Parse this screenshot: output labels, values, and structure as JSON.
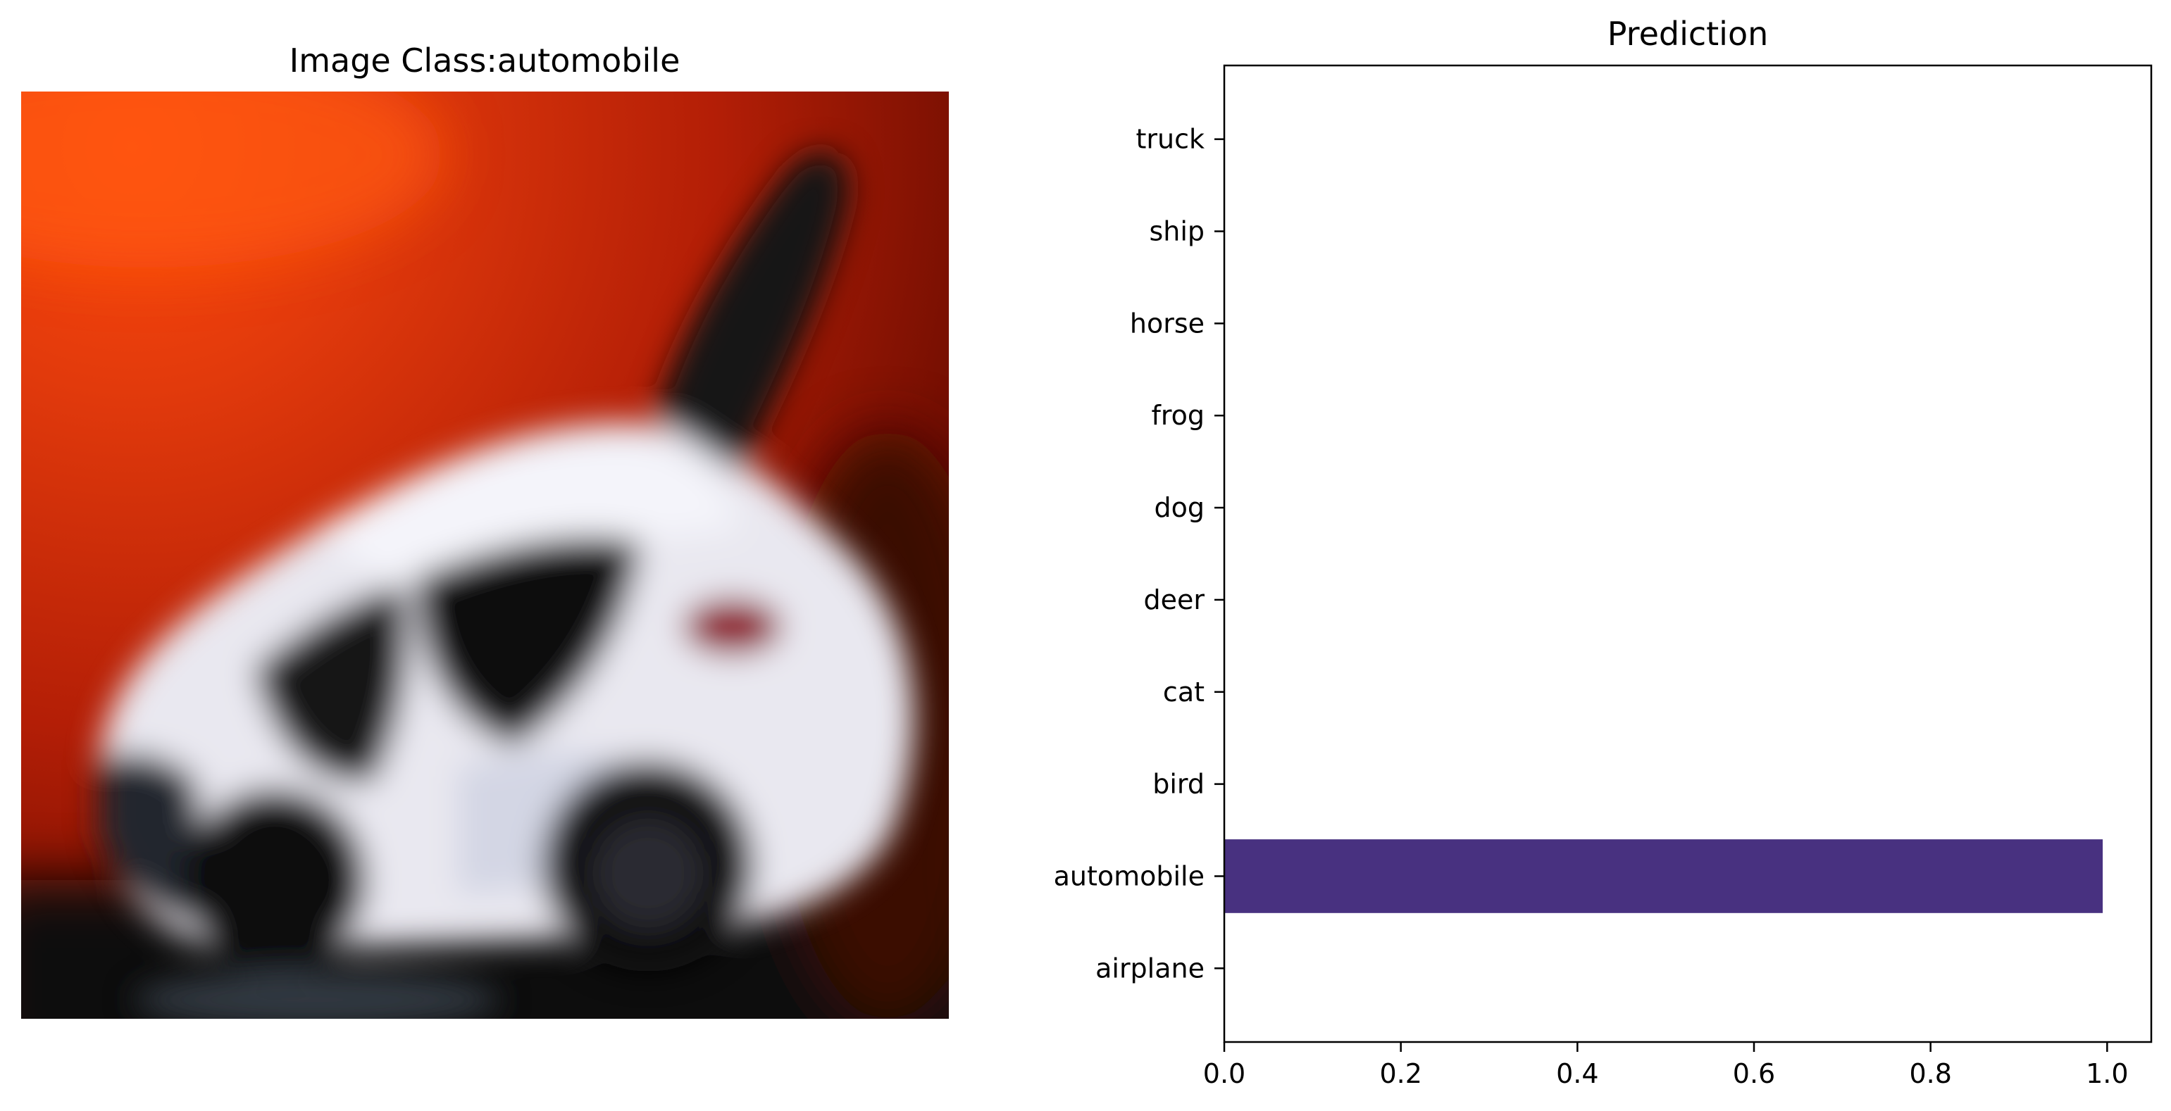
{
  "image_panel": {
    "title": "Image Class:automobile",
    "content_icon": "car-photo"
  },
  "chart_data": {
    "type": "bar",
    "orientation": "horizontal",
    "title": "Prediction",
    "xlabel": "",
    "ylabel": "",
    "categories": [
      "airplane",
      "automobile",
      "bird",
      "cat",
      "deer",
      "dog",
      "frog",
      "horse",
      "ship",
      "truck"
    ],
    "values": [
      0.0,
      0.995,
      0.0,
      0.0,
      0.0,
      0.0,
      0.0,
      0.0,
      0.0,
      0.0
    ],
    "xlim": [
      0.0,
      1.05
    ],
    "xticks": [
      "0.0",
      "0.2",
      "0.4",
      "0.6",
      "0.8",
      "1.0"
    ],
    "xtick_values": [
      0.0,
      0.2,
      0.4,
      0.6,
      0.8,
      1.0
    ],
    "bar_color": "#483180",
    "grid": false,
    "legend": "none"
  }
}
